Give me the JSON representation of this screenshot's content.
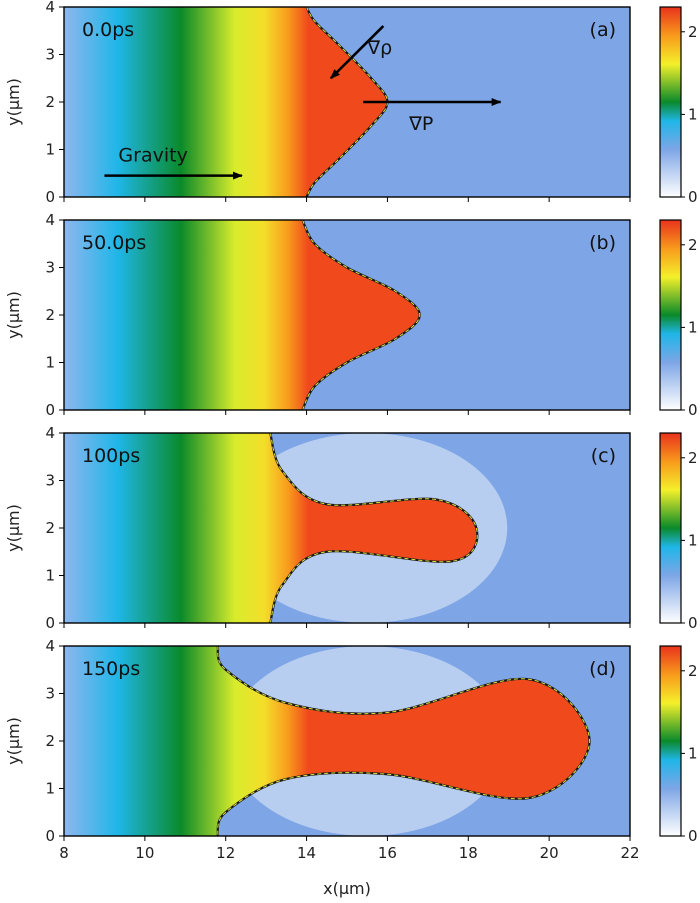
{
  "chart_data": {
    "type": "heatmap",
    "xlabel": "x(μm)",
    "ylabel": "y(μm)",
    "xlim": [
      8,
      22
    ],
    "ylim": [
      0,
      4
    ],
    "x_ticks": [
      "8",
      "10",
      "12",
      "14",
      "16",
      "18",
      "20",
      "22"
    ],
    "y_ticks": [
      "0",
      "1",
      "2",
      "3",
      "4"
    ],
    "colorbar": {
      "range": [
        0,
        2.3
      ],
      "ticks": [
        "0",
        "1",
        "2"
      ]
    },
    "colors": {
      "low": "#ffffff",
      "bg": "#7ea6e6",
      "cyan": "#1fb6e8",
      "green": "#0a8a2a",
      "yellow": "#f4f02a",
      "orange": "#f89a1c",
      "red": "#e8321c"
    },
    "panels": [
      {
        "time": "0.0ps",
        "tag": "(a)",
        "interface_x": [
          14,
          14.2,
          14.8,
          15.6,
          16.0,
          15.6,
          14.8,
          14.2,
          14
        ],
        "interface_y": [
          4,
          3.7,
          3.2,
          2.5,
          2.0,
          1.5,
          0.8,
          0.3,
          0
        ],
        "annotations": [
          {
            "text": "∇ρ",
            "arrow_from": [
              15.9,
              3.6
            ],
            "arrow_to": [
              14.6,
              2.5
            ]
          },
          {
            "text": "∇P",
            "arrow_from": [
              15.4,
              2.0
            ],
            "arrow_to": [
              18.8,
              2.0
            ]
          },
          {
            "text": "Gravity",
            "arrow_from": [
              9.0,
              0.45
            ],
            "arrow_to": [
              12.4,
              0.45
            ]
          }
        ]
      },
      {
        "time": "50.0ps",
        "tag": "(b)",
        "interface_x": [
          13.9,
          14.2,
          15.0,
          16.2,
          16.8,
          16.2,
          15.0,
          14.2,
          13.9
        ],
        "interface_y": [
          4,
          3.5,
          3.0,
          2.5,
          2.0,
          1.5,
          1.0,
          0.5,
          0
        ]
      },
      {
        "time": "100ps",
        "tag": "(c)",
        "interface_x": [
          13.1,
          13.4,
          14.5,
          17.2,
          18.2,
          17.6,
          14.5,
          13.4,
          13.1
        ],
        "interface_y": [
          4,
          3.2,
          2.5,
          2.6,
          2.0,
          1.3,
          1.5,
          0.8,
          0
        ]
      },
      {
        "time": "150ps",
        "tag": "(d)",
        "interface_x": [
          11.8,
          12.0,
          13.5,
          16.0,
          19.5,
          21.0,
          19.5,
          16.0,
          13.5,
          12.0,
          11.8
        ],
        "interface_y": [
          4,
          3.5,
          2.8,
          2.6,
          3.3,
          2.0,
          0.8,
          1.3,
          1.2,
          0.5,
          0
        ]
      }
    ]
  }
}
